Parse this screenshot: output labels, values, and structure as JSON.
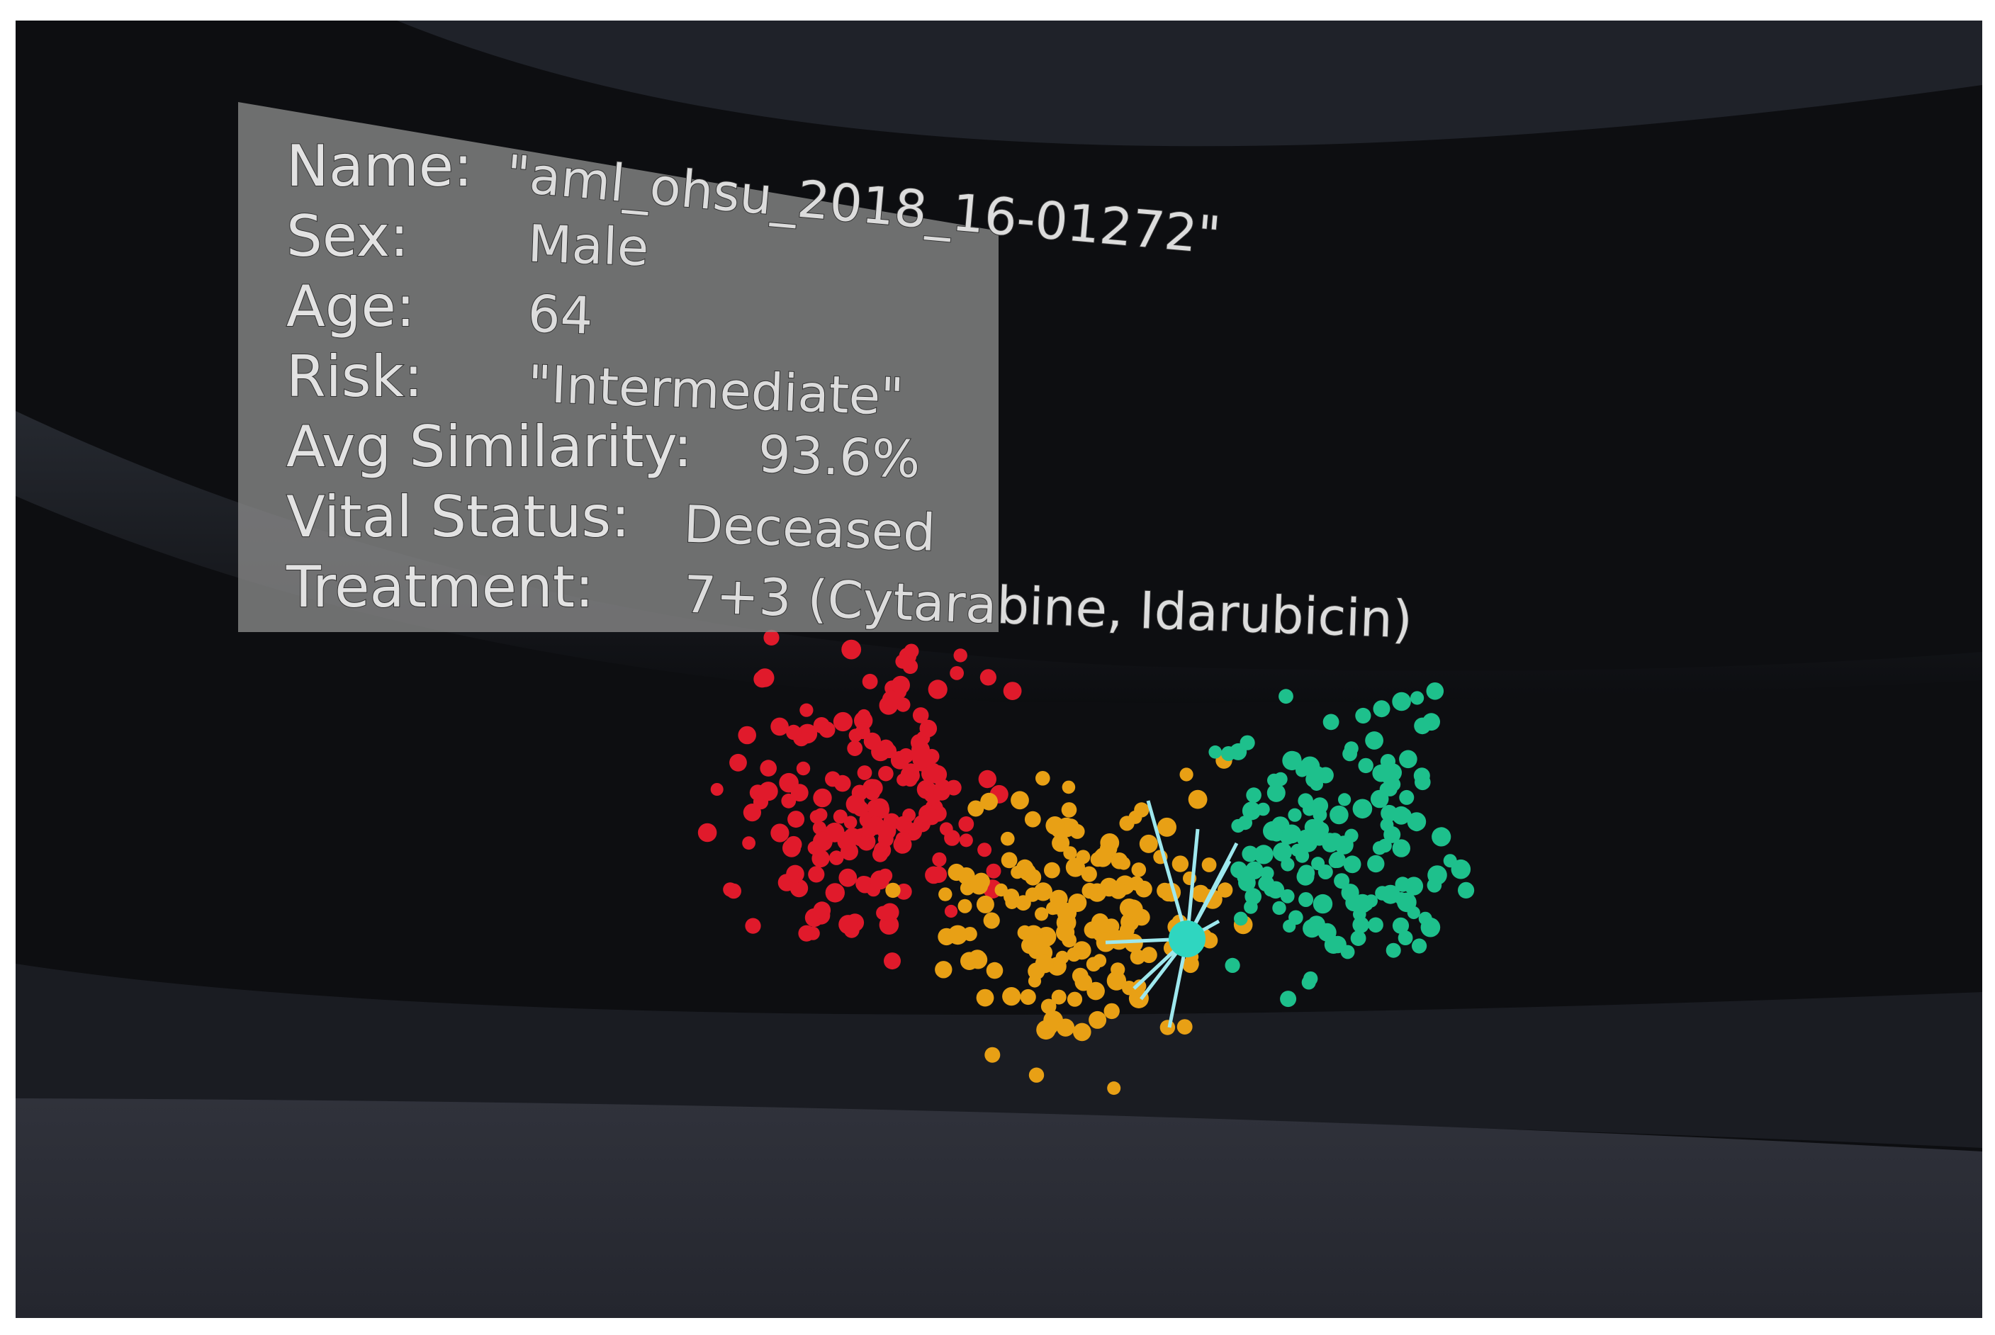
{
  "panel": {
    "rows": [
      {
        "label": "Name:",
        "value": "\"aml_ohsu_2018_16-01272\""
      },
      {
        "label": "Sex:",
        "value": "Male"
      },
      {
        "label": "Age:",
        "value": "64"
      },
      {
        "label": "Risk:",
        "value": "\"Intermediate\""
      },
      {
        "label": "Avg Similarity:",
        "value": "93.6%"
      },
      {
        "label": "Vital Status:",
        "value": "Deceased"
      },
      {
        "label": "Treatment:",
        "value": "7+3 (Cytarabine, Idarubicin)"
      }
    ]
  }
}
